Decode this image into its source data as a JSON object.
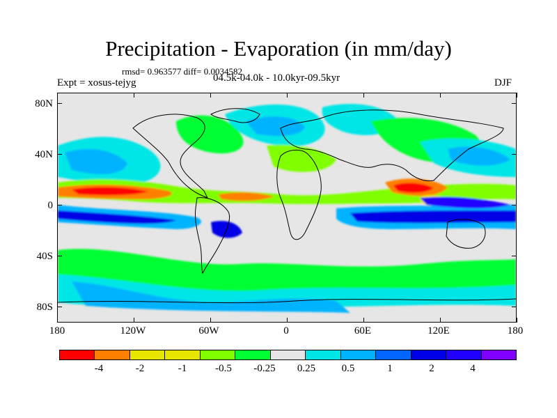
{
  "title": "Precipitation - Evaporation (in mm/day)",
  "stats": "rmsd= 0.963577 diff= 0.0034582",
  "experiment": "Expt = xosus-tejyg",
  "period": "04.5k-04.0k - 10.0kyr-09.5kyr",
  "season": "DJF",
  "y_axis_labels": [
    "80N",
    "40N",
    "0",
    "40S",
    "80S"
  ],
  "x_axis_labels": [
    "180",
    "120W",
    "60W",
    "0",
    "60E",
    "120E",
    "180"
  ],
  "colorbar": {
    "colors": [
      "#ff0000",
      "#ff8000",
      "#e6e600",
      "#e6e600",
      "#80ff00",
      "#00ff33",
      "#e6e6e6",
      "#00e6e6",
      "#00b3ff",
      "#0066ff",
      "#0000e6",
      "#2000ff",
      "#8000ff"
    ],
    "labels": [
      "-4",
      "-2",
      "-1",
      "-0.5",
      "-0.25",
      "0.25",
      "0.5",
      "1",
      "2",
      "4"
    ]
  }
}
